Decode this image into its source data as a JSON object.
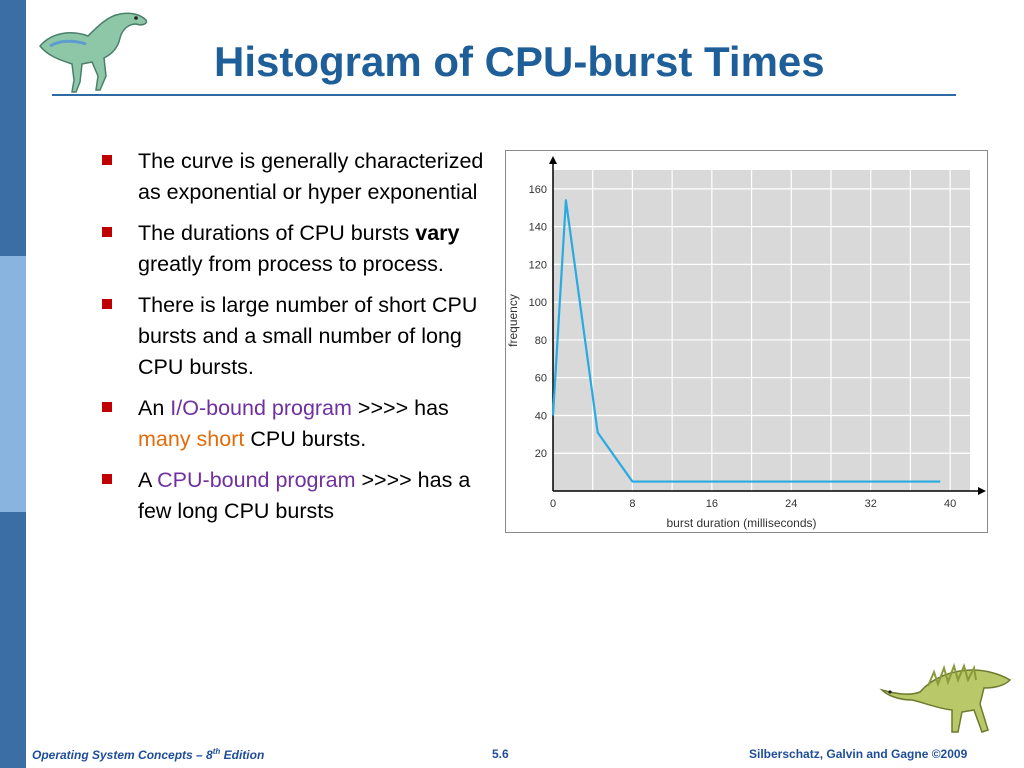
{
  "slide": {
    "title": "Histogram of CPU-burst Times",
    "bullets": [
      {
        "parts": [
          {
            "text": "The curve is generally characterized as exponential or hyper exponential",
            "style": "normal"
          }
        ]
      },
      {
        "parts": [
          {
            "text": "The durations of CPU bursts ",
            "style": "normal"
          },
          {
            "text": "vary",
            "style": "bold"
          },
          {
            "text": " greatly from process to process.",
            "style": "normal"
          }
        ]
      },
      {
        "parts": [
          {
            "text": "There is  large number of short CPU bursts and a small number of long CPU bursts.",
            "style": "normal"
          }
        ]
      },
      {
        "parts": [
          {
            "text": "An ",
            "style": "normal"
          },
          {
            "text": "I/O-bound program",
            "style": "purple"
          },
          {
            "text": " >>>> has ",
            "style": "normal"
          },
          {
            "text": "many short",
            "style": "orange"
          },
          {
            "text": " CPU bursts.",
            "style": "normal"
          }
        ]
      },
      {
        "parts": [
          {
            "text": "A ",
            "style": "normal"
          },
          {
            "text": "CPU-bound program",
            "style": "purple"
          },
          {
            "text": " >>>> has a few long CPU bursts",
            "style": "normal"
          }
        ]
      }
    ]
  },
  "footer": {
    "left_main": "Operating System Concepts – 8",
    "left_sup": "th",
    "left_tail": " Edition",
    "page": "5.6",
    "right": "Silberschatz, Galvin and Gagne ©2009"
  },
  "colors": {
    "title": "#1f5f99",
    "bullet_marker": "#c00000",
    "highlight_purple": "#7030a0",
    "highlight_orange": "#e36c09",
    "plot_background": "#d9d9d9",
    "line": "#29abe2"
  },
  "icons": {
    "top_left": "dinosaur-icon",
    "bottom_right": "dinosaur-icon"
  },
  "chart_data": {
    "type": "line",
    "xlabel": "burst duration (milliseconds)",
    "ylabel": "frequency",
    "x_ticks": [
      0,
      8,
      16,
      24,
      32,
      40
    ],
    "y_ticks": [
      20,
      40,
      60,
      80,
      100,
      120,
      140,
      160
    ],
    "xlim": [
      0,
      42
    ],
    "ylim": [
      0,
      170
    ],
    "grid": true,
    "series": [
      {
        "x": [
          0,
          1.3,
          4.5,
          8,
          39
        ],
        "y": [
          40,
          154,
          31,
          5,
          5
        ]
      }
    ]
  }
}
